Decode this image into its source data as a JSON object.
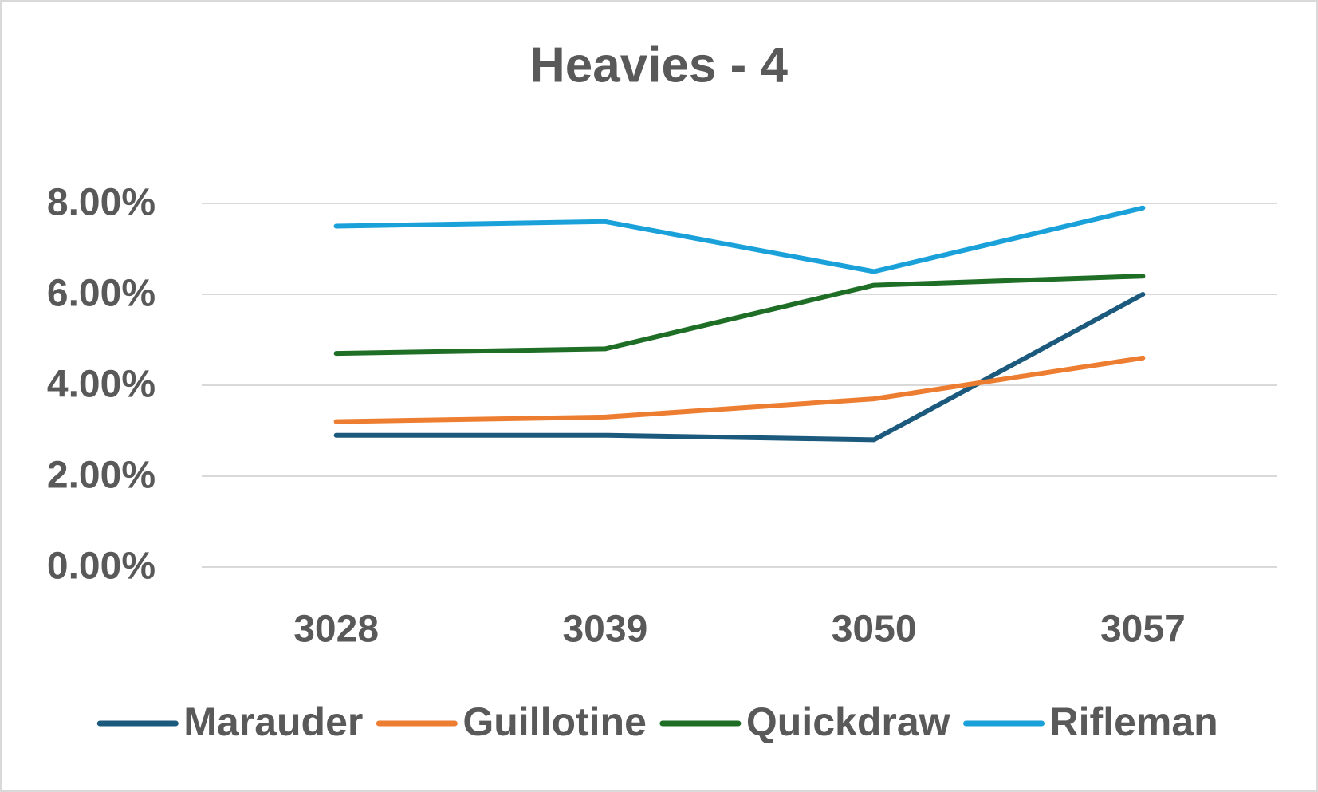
{
  "chart_data": {
    "type": "line",
    "title": "Heavies - 4",
    "categories": [
      "3028",
      "3039",
      "3050",
      "3057"
    ],
    "series": [
      {
        "name": "Marauder",
        "color": "#1c5a7d",
        "values": [
          2.9,
          2.9,
          2.8,
          6.0
        ]
      },
      {
        "name": "Guillotine",
        "color": "#ed7d31",
        "values": [
          3.2,
          3.3,
          3.7,
          4.6
        ]
      },
      {
        "name": "Quickdraw",
        "color": "#1e6e26",
        "values": [
          4.7,
          4.8,
          6.2,
          6.4
        ]
      },
      {
        "name": "Rifleman",
        "color": "#1ba1d9",
        "values": [
          7.5,
          7.6,
          6.5,
          7.9
        ]
      }
    ],
    "ylim": [
      0,
      8
    ],
    "yticks": [
      {
        "value": 0,
        "label": "0.00%"
      },
      {
        "value": 2,
        "label": "2.00%"
      },
      {
        "value": 4,
        "label": "4.00%"
      },
      {
        "value": 6,
        "label": "6.00%"
      },
      {
        "value": 8,
        "label": "8.00%"
      }
    ],
    "grid": true,
    "legend": "bottom"
  }
}
